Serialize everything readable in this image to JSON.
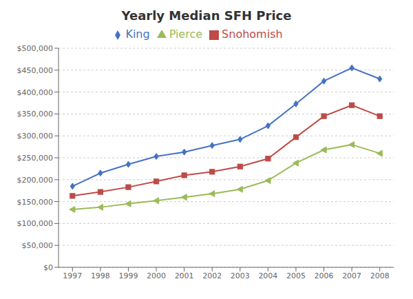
{
  "chart_data": {
    "type": "line",
    "title": "Yearly Median SFH Price",
    "x": [
      1997,
      1998,
      1999,
      2000,
      2001,
      2002,
      2003,
      2004,
      2005,
      2006,
      2007,
      2008
    ],
    "series": [
      {
        "name": "King",
        "color": "#4472C4",
        "marker": "diamond",
        "values": [
          185000,
          215000,
          235000,
          253000,
          263000,
          278000,
          292000,
          323000,
          373000,
          425000,
          455000,
          430000
        ]
      },
      {
        "name": "Snohomish",
        "color": "#BE4B48",
        "marker": "square",
        "values": [
          163000,
          172000,
          183000,
          196000,
          210000,
          218000,
          230000,
          248000,
          297000,
          345000,
          370000,
          345000
        ]
      },
      {
        "name": "Pierce",
        "color": "#9BBB59",
        "marker": "triangle_left",
        "values": [
          132000,
          137000,
          145000,
          152000,
          160000,
          168000,
          178000,
          198000,
          238000,
          268000,
          280000,
          260000
        ]
      }
    ],
    "xlim": [
      1996.5,
      2008.5
    ],
    "xticks": [
      1997,
      1998,
      1999,
      2000,
      2001,
      2002,
      2003,
      2004,
      2005,
      2006,
      2007,
      2008
    ],
    "ylim": [
      0,
      500000
    ],
    "yticks": [
      {
        "value": 0,
        "label": "$0"
      },
      {
        "value": 50000,
        "label": "$50,000"
      },
      {
        "value": 100000,
        "label": "$100,000"
      },
      {
        "value": 150000,
        "label": "$150,000"
      },
      {
        "value": 200000,
        "label": "$200,000"
      },
      {
        "value": 250000,
        "label": "$250,000"
      },
      {
        "value": 300000,
        "label": "$300,000"
      },
      {
        "value": 350000,
        "label": "$350,000"
      },
      {
        "value": 400000,
        "label": "$400,000"
      },
      {
        "value": 450000,
        "label": "$450,000"
      },
      {
        "value": 500000,
        "label": "$500,000"
      }
    ],
    "grid": "y",
    "legend": "top"
  }
}
